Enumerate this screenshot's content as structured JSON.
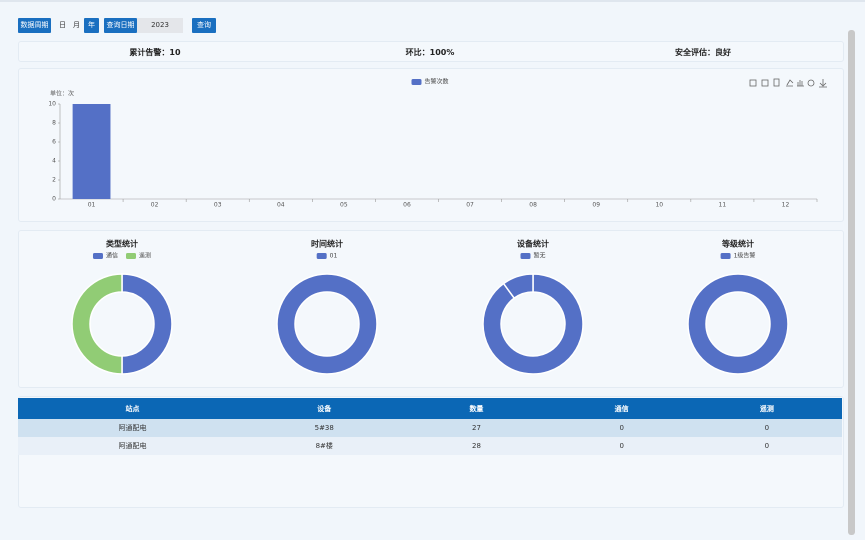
{
  "toolbar": {
    "period_label": "数据周期",
    "periods": [
      "日",
      "月",
      "年"
    ],
    "active_period": "年",
    "date_label": "查询日期",
    "date": "2023",
    "query": "查询"
  },
  "summary": [
    "累计告警：10",
    "环比：100%",
    "安全评估：良好"
  ],
  "chart_data": [
    {
      "type": "bar",
      "y_label": "单位：次",
      "categories": [
        "01",
        "02",
        "03",
        "04",
        "05",
        "06",
        "07",
        "08",
        "09",
        "10",
        "11",
        "12"
      ],
      "series": [
        {
          "name": "告警次数",
          "color": "#5470c6",
          "values": [
            10,
            0,
            0,
            0,
            0,
            0,
            0,
            0,
            0,
            0,
            0,
            0
          ]
        }
      ],
      "ylim": [
        0,
        10
      ],
      "yticks": [
        0,
        2,
        4,
        6,
        8,
        10
      ],
      "legend": "top"
    },
    {
      "type": "pie",
      "donut": true,
      "title": "类型统计",
      "categories": [
        "通信",
        "遥测"
      ],
      "values": [
        5,
        5
      ],
      "colors": [
        "#5470c6",
        "#91cc75"
      ]
    },
    {
      "type": "pie",
      "donut": true,
      "title": "时间统计",
      "categories": [
        "01"
      ],
      "values": [
        10
      ],
      "colors": [
        "#5470c6"
      ]
    },
    {
      "type": "pie",
      "donut": true,
      "title": "设备统计",
      "categories": [
        "暂无",
        null
      ],
      "values": [
        9,
        1
      ],
      "colors": [
        "#5470c6",
        "#5470c6"
      ]
    },
    {
      "type": "pie",
      "donut": true,
      "title": "等级统计",
      "categories": [
        "1级告警"
      ],
      "values": [
        10
      ],
      "colors": [
        "#5470c6"
      ]
    }
  ],
  "table": {
    "columns": [
      "站点",
      "设备",
      "数量",
      "通信",
      "遥测"
    ],
    "rows": [
      [
        "阿通配电",
        "5#38",
        "27",
        "0",
        "0"
      ],
      [
        "阿通配电",
        "8#楼",
        "28",
        "0",
        "0"
      ]
    ]
  }
}
